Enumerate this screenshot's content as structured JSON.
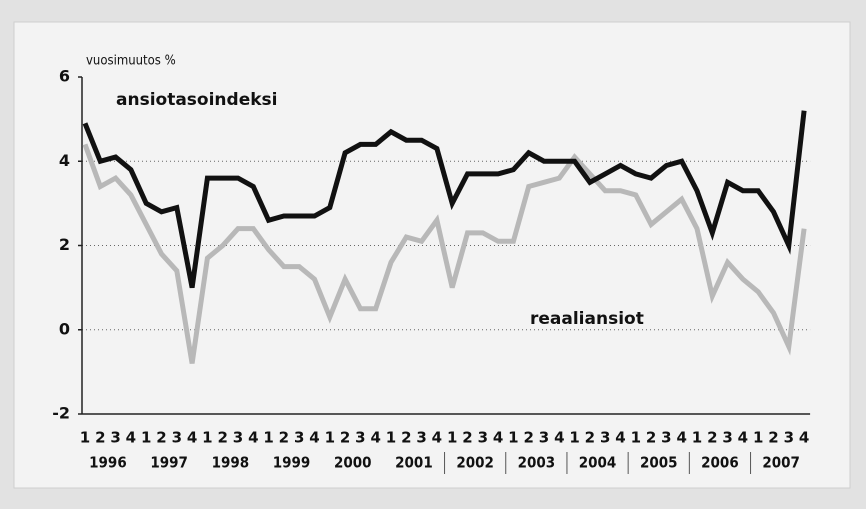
{
  "chart_data": {
    "type": "line",
    "ylabel": "vuosimuutos %",
    "categories": [
      "1",
      "2",
      "3",
      "4",
      "1",
      "2",
      "3",
      "4",
      "1",
      "2",
      "3",
      "4",
      "1",
      "2",
      "3",
      "4",
      "1",
      "2",
      "3",
      "4",
      "1",
      "2",
      "3",
      "4",
      "1",
      "2",
      "3",
      "4",
      "1",
      "2",
      "3",
      "4",
      "1",
      "2",
      "3",
      "4",
      "1",
      "2",
      "3",
      "4",
      "1",
      "2",
      "3",
      "4",
      "1",
      "2",
      "3",
      "4"
    ],
    "years": [
      "1996",
      "1997",
      "1998",
      "1999",
      "2000",
      "2001",
      "2002",
      "2003",
      "2004",
      "2005",
      "2006",
      "2007"
    ],
    "series": [
      {
        "name": "ansiotasoindeksi",
        "color": "#111111",
        "values": [
          4.9,
          4.0,
          4.1,
          3.8,
          3.0,
          2.8,
          2.9,
          1.0,
          3.6,
          3.6,
          3.6,
          3.4,
          2.6,
          2.7,
          2.7,
          2.7,
          2.9,
          4.2,
          4.4,
          4.4,
          4.7,
          4.5,
          4.5,
          4.3,
          3.0,
          3.7,
          3.7,
          3.7,
          3.8,
          4.2,
          4.0,
          4.0,
          4.0,
          3.5,
          3.7,
          3.9,
          3.7,
          3.6,
          3.9,
          4.0,
          3.3,
          2.3,
          3.5,
          3.3,
          3.3,
          2.8,
          2.0,
          5.2
        ]
      },
      {
        "name": "reaaliansiot",
        "color": "#b8b8b8",
        "values": [
          4.4,
          3.4,
          3.6,
          3.2,
          2.5,
          1.8,
          1.4,
          -0.8,
          1.7,
          2.0,
          2.4,
          2.4,
          1.9,
          1.5,
          1.5,
          1.2,
          0.3,
          1.2,
          0.5,
          0.5,
          1.6,
          2.2,
          2.1,
          2.6,
          1.0,
          2.3,
          2.3,
          2.1,
          2.1,
          3.4,
          3.5,
          3.6,
          4.1,
          3.7,
          3.3,
          3.3,
          3.2,
          2.5,
          2.8,
          3.1,
          2.4,
          0.8,
          1.6,
          1.2,
          0.9,
          0.4,
          -0.4,
          2.4
        ]
      }
    ],
    "ylim": [
      -2,
      6
    ],
    "yticks": [
      -2,
      0,
      2,
      4,
      6
    ],
    "grid": true
  }
}
